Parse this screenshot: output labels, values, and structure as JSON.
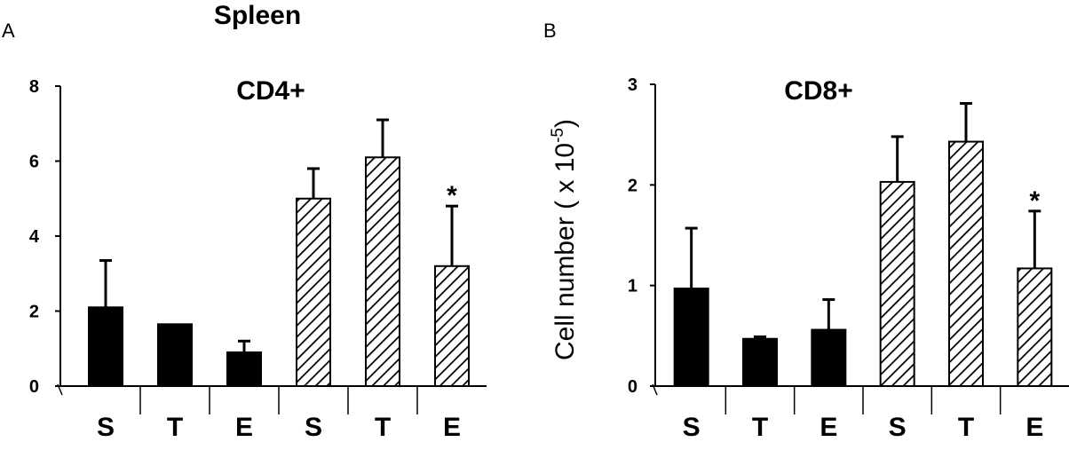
{
  "figure": {
    "title": "Spleen"
  },
  "chart_data": [
    {
      "panel": "A",
      "type": "bar",
      "title": "CD4+",
      "xlabel": "",
      "ylabel": "",
      "ylim": [
        0,
        8
      ],
      "yticks": [
        "0",
        "2",
        "4",
        "6",
        "8"
      ],
      "categories": [
        "S",
        "T",
        "E",
        "S",
        "T",
        "E"
      ],
      "values": [
        2.1,
        1.65,
        0.9,
        5.0,
        6.1,
        3.2
      ],
      "errors": [
        1.25,
        0,
        0.3,
        0.8,
        1.0,
        1.6
      ],
      "fill": [
        "solid",
        "solid",
        "solid",
        "hatched",
        "hatched",
        "hatched"
      ],
      "annotations": [
        {
          "category_index": 5,
          "text": "*"
        }
      ],
      "grid": false,
      "legend": "none"
    },
    {
      "panel": "B",
      "type": "bar",
      "title": "CD8+",
      "xlabel": "",
      "ylabel": "Cell number ( x 10",
      "ylabel_superscript": "-5",
      "ylabel_suffix": ")",
      "ylim": [
        0,
        3
      ],
      "yticks": [
        "0",
        "1",
        "2",
        "3"
      ],
      "categories": [
        "S",
        "T",
        "E",
        "S",
        "T",
        "E"
      ],
      "values": [
        0.97,
        0.47,
        0.56,
        2.03,
        2.43,
        1.17
      ],
      "errors": [
        0.6,
        0.02,
        0.3,
        0.45,
        0.38,
        0.57
      ],
      "fill": [
        "solid",
        "solid",
        "solid",
        "hatched",
        "hatched",
        "hatched"
      ],
      "annotations": [
        {
          "category_index": 5,
          "text": "*"
        }
      ],
      "grid": false,
      "legend": "none"
    }
  ],
  "colors": {
    "bar": "#000000",
    "hatch_background": "#ffffff",
    "axis": "#000000"
  }
}
